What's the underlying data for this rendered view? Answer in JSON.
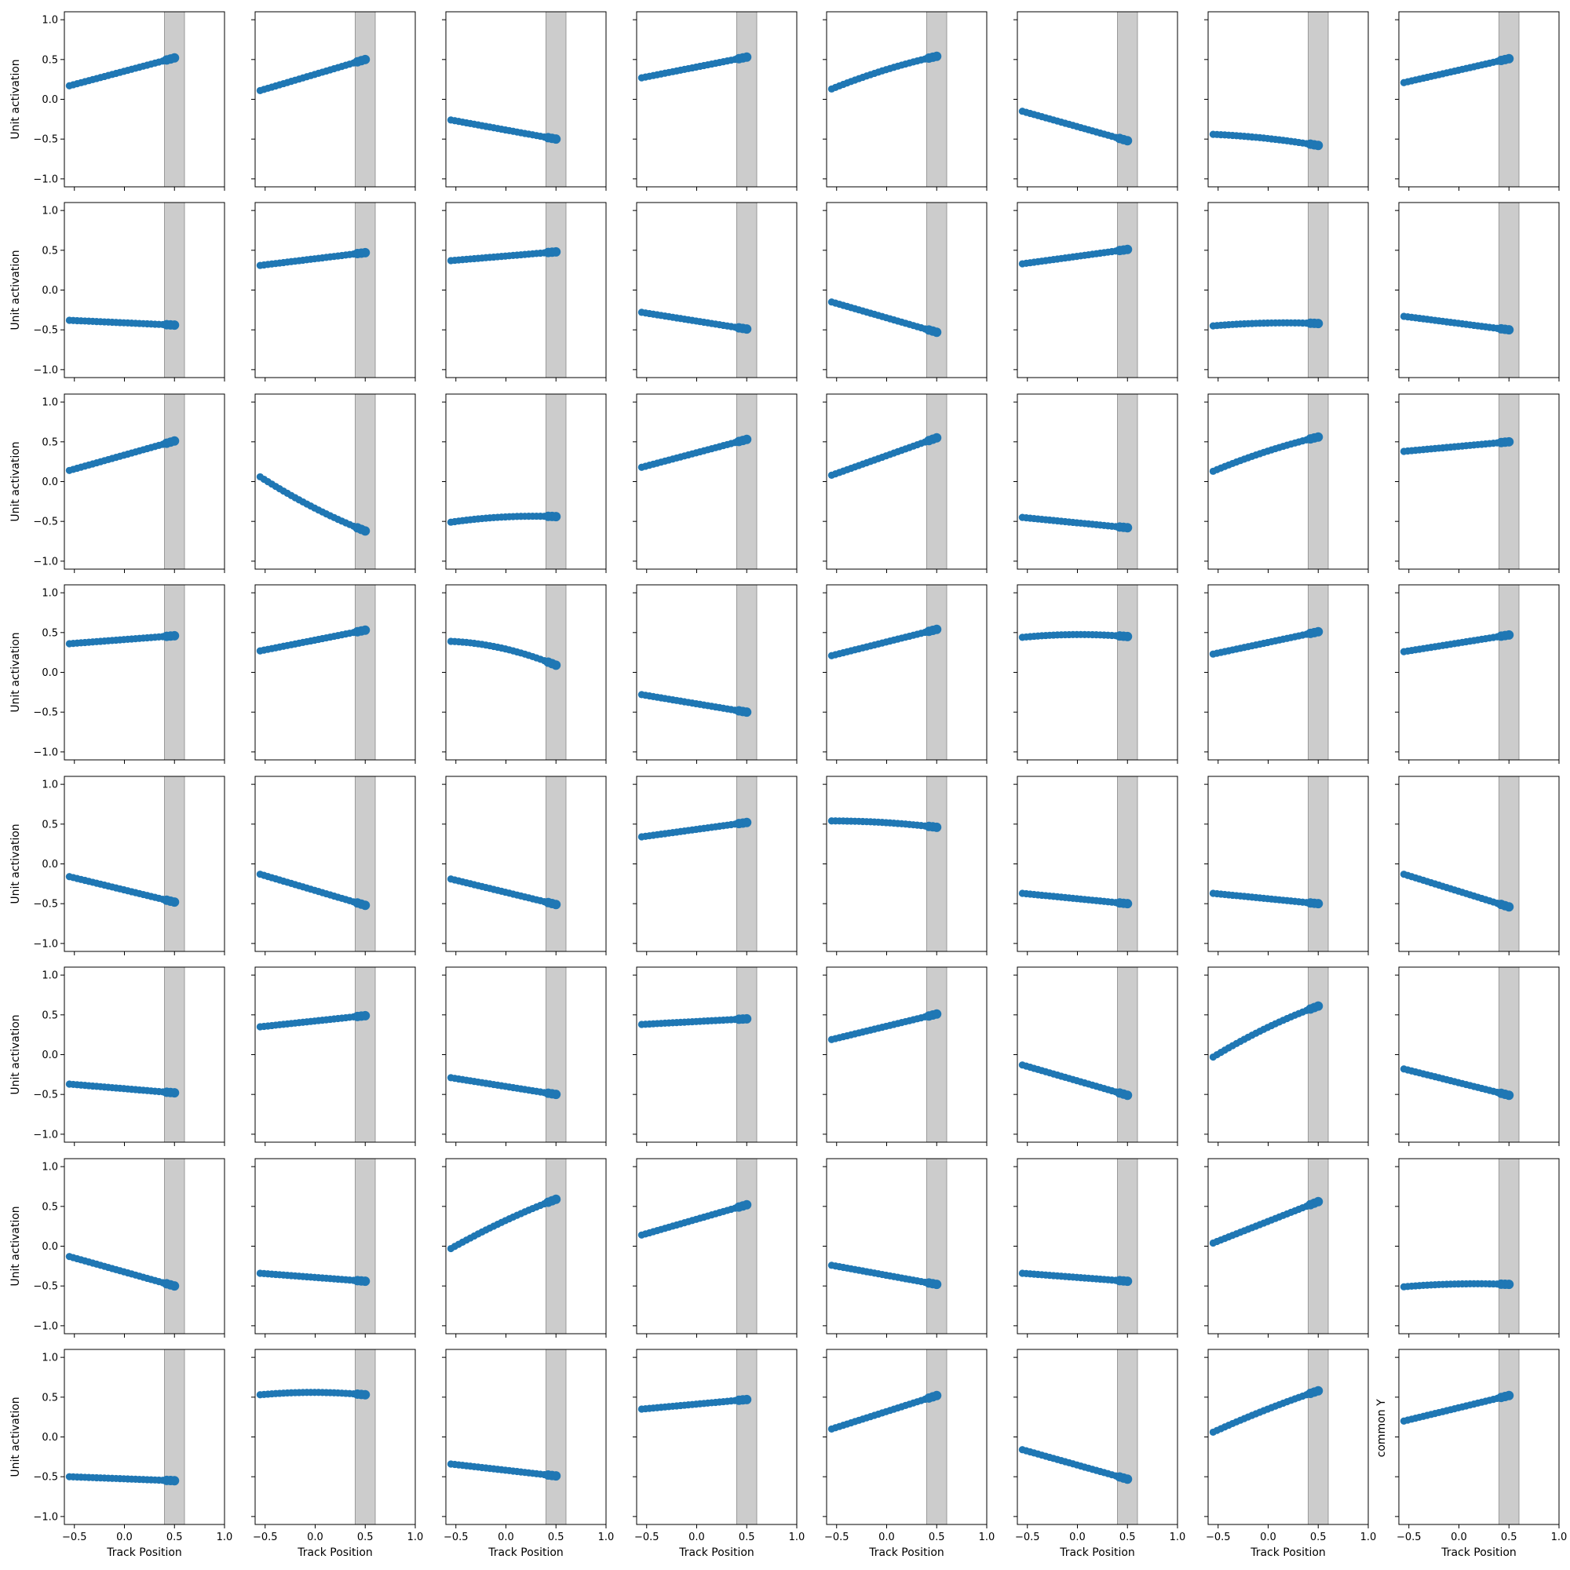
{
  "figure": {
    "rows": 8,
    "cols": 8,
    "background": "#ffffff",
    "point_color": "#1f77b4",
    "band_color": "#cccccc",
    "band_edge_color": "#999999",
    "axis_color": "#000000"
  },
  "chart_data": {
    "type": "scatter",
    "layout": "8x8 small multiples, shared axes",
    "xlabel": "Track Position",
    "ylabel": "Unit activation",
    "special_ylabel": "common Y",
    "xlim": [
      -0.6,
      1.0
    ],
    "ylim": [
      -1.1,
      1.1
    ],
    "xticks": [
      -0.5,
      0.0,
      0.5,
      1.0
    ],
    "xtick_labels": [
      "−0.5",
      "0.0",
      "0.5",
      "1.0"
    ],
    "yticks": [
      -1.0,
      -0.5,
      0.0,
      0.5,
      1.0
    ],
    "ytick_labels": [
      "−1.0",
      "−0.5",
      "0.0",
      "0.5",
      "1.0"
    ],
    "shaded_band_x": [
      0.4,
      0.6
    ],
    "x_range_points": [
      -0.55,
      0.5
    ],
    "points_per_panel": 28,
    "grid": false,
    "legend": "none",
    "panels": [
      {
        "row": 0,
        "col": 0,
        "y": [
          0.17,
          0.52
        ],
        "curve": 0
      },
      {
        "row": 0,
        "col": 1,
        "y": [
          0.11,
          0.5
        ],
        "curve": 0
      },
      {
        "row": 0,
        "col": 2,
        "y": [
          -0.26,
          -0.5
        ],
        "curve": 0
      },
      {
        "row": 0,
        "col": 3,
        "y": [
          0.27,
          0.53
        ],
        "curve": 0
      },
      {
        "row": 0,
        "col": 4,
        "y": [
          0.13,
          0.54
        ],
        "curve": 0.03
      },
      {
        "row": 0,
        "col": 5,
        "y": [
          -0.15,
          -0.52
        ],
        "curve": 0
      },
      {
        "row": 0,
        "col": 6,
        "y": [
          -0.44,
          -0.58
        ],
        "curve": 0.02
      },
      {
        "row": 0,
        "col": 7,
        "y": [
          0.21,
          0.51
        ],
        "curve": 0
      },
      {
        "row": 1,
        "col": 0,
        "y": [
          -0.38,
          -0.44
        ],
        "curve": 0
      },
      {
        "row": 1,
        "col": 1,
        "y": [
          0.31,
          0.47
        ],
        "curve": 0
      },
      {
        "row": 1,
        "col": 2,
        "y": [
          0.37,
          0.48
        ],
        "curve": 0
      },
      {
        "row": 1,
        "col": 3,
        "y": [
          -0.28,
          -0.49
        ],
        "curve": 0
      },
      {
        "row": 1,
        "col": 4,
        "y": [
          -0.15,
          -0.53
        ],
        "curve": 0
      },
      {
        "row": 1,
        "col": 5,
        "y": [
          0.33,
          0.51
        ],
        "curve": 0
      },
      {
        "row": 1,
        "col": 6,
        "y": [
          -0.45,
          -0.42
        ],
        "curve": 0.02
      },
      {
        "row": 1,
        "col": 7,
        "y": [
          -0.33,
          -0.5
        ],
        "curve": 0
      },
      {
        "row": 2,
        "col": 0,
        "y": [
          0.14,
          0.51
        ],
        "curve": 0
      },
      {
        "row": 2,
        "col": 1,
        "y": [
          0.06,
          -0.62
        ],
        "curve": -0.04
      },
      {
        "row": 2,
        "col": 2,
        "y": [
          -0.51,
          -0.44
        ],
        "curve": 0.03
      },
      {
        "row": 2,
        "col": 3,
        "y": [
          0.18,
          0.53
        ],
        "curve": 0
      },
      {
        "row": 2,
        "col": 4,
        "y": [
          0.08,
          0.55
        ],
        "curve": 0
      },
      {
        "row": 2,
        "col": 5,
        "y": [
          -0.45,
          -0.58
        ],
        "curve": 0
      },
      {
        "row": 2,
        "col": 6,
        "y": [
          0.13,
          0.56
        ],
        "curve": 0.03
      },
      {
        "row": 2,
        "col": 7,
        "y": [
          0.38,
          0.5
        ],
        "curve": 0
      },
      {
        "row": 3,
        "col": 0,
        "y": [
          0.36,
          0.46
        ],
        "curve": 0
      },
      {
        "row": 3,
        "col": 1,
        "y": [
          0.27,
          0.53
        ],
        "curve": 0
      },
      {
        "row": 3,
        "col": 2,
        "y": [
          0.39,
          0.09
        ],
        "curve": 0.06
      },
      {
        "row": 3,
        "col": 3,
        "y": [
          -0.28,
          -0.5
        ],
        "curve": 0
      },
      {
        "row": 3,
        "col": 4,
        "y": [
          0.21,
          0.54
        ],
        "curve": 0
      },
      {
        "row": 3,
        "col": 5,
        "y": [
          0.44,
          0.45
        ],
        "curve": 0.03
      },
      {
        "row": 3,
        "col": 6,
        "y": [
          0.23,
          0.51
        ],
        "curve": 0
      },
      {
        "row": 3,
        "col": 7,
        "y": [
          0.26,
          0.47
        ],
        "curve": 0
      },
      {
        "row": 4,
        "col": 0,
        "y": [
          -0.16,
          -0.48
        ],
        "curve": 0
      },
      {
        "row": 4,
        "col": 1,
        "y": [
          -0.13,
          -0.52
        ],
        "curve": 0
      },
      {
        "row": 4,
        "col": 2,
        "y": [
          -0.19,
          -0.51
        ],
        "curve": 0
      },
      {
        "row": 4,
        "col": 3,
        "y": [
          0.34,
          0.52
        ],
        "curve": 0
      },
      {
        "row": 4,
        "col": 4,
        "y": [
          0.54,
          0.46
        ],
        "curve": 0.02
      },
      {
        "row": 4,
        "col": 5,
        "y": [
          -0.37,
          -0.5
        ],
        "curve": 0
      },
      {
        "row": 4,
        "col": 6,
        "y": [
          -0.37,
          -0.5
        ],
        "curve": 0
      },
      {
        "row": 4,
        "col": 7,
        "y": [
          -0.13,
          -0.54
        ],
        "curve": 0
      },
      {
        "row": 5,
        "col": 0,
        "y": [
          -0.37,
          -0.48
        ],
        "curve": 0
      },
      {
        "row": 5,
        "col": 1,
        "y": [
          0.35,
          0.49
        ],
        "curve": 0
      },
      {
        "row": 5,
        "col": 2,
        "y": [
          -0.29,
          -0.5
        ],
        "curve": 0
      },
      {
        "row": 5,
        "col": 3,
        "y": [
          0.38,
          0.45
        ],
        "curve": 0
      },
      {
        "row": 5,
        "col": 4,
        "y": [
          0.19,
          0.51
        ],
        "curve": 0
      },
      {
        "row": 5,
        "col": 5,
        "y": [
          -0.13,
          -0.51
        ],
        "curve": 0
      },
      {
        "row": 5,
        "col": 6,
        "y": [
          -0.03,
          0.61
        ],
        "curve": 0.04
      },
      {
        "row": 5,
        "col": 7,
        "y": [
          -0.18,
          -0.51
        ],
        "curve": 0
      },
      {
        "row": 6,
        "col": 0,
        "y": [
          -0.13,
          -0.5
        ],
        "curve": 0
      },
      {
        "row": 6,
        "col": 1,
        "y": [
          -0.34,
          -0.44
        ],
        "curve": 0
      },
      {
        "row": 6,
        "col": 2,
        "y": [
          -0.03,
          0.59
        ],
        "curve": 0.03
      },
      {
        "row": 6,
        "col": 3,
        "y": [
          0.14,
          0.52
        ],
        "curve": 0
      },
      {
        "row": 6,
        "col": 4,
        "y": [
          -0.24,
          -0.48
        ],
        "curve": 0
      },
      {
        "row": 6,
        "col": 5,
        "y": [
          -0.34,
          -0.44
        ],
        "curve": 0
      },
      {
        "row": 6,
        "col": 6,
        "y": [
          0.04,
          0.56
        ],
        "curve": 0
      },
      {
        "row": 6,
        "col": 7,
        "y": [
          -0.51,
          -0.48
        ],
        "curve": 0.02
      },
      {
        "row": 7,
        "col": 0,
        "y": [
          -0.5,
          -0.55
        ],
        "curve": 0
      },
      {
        "row": 7,
        "col": 1,
        "y": [
          0.53,
          0.53
        ],
        "curve": 0.03
      },
      {
        "row": 7,
        "col": 2,
        "y": [
          -0.34,
          -0.49
        ],
        "curve": 0
      },
      {
        "row": 7,
        "col": 3,
        "y": [
          0.35,
          0.47
        ],
        "curve": 0
      },
      {
        "row": 7,
        "col": 4,
        "y": [
          0.1,
          0.52
        ],
        "curve": 0
      },
      {
        "row": 7,
        "col": 5,
        "y": [
          -0.16,
          -0.53
        ],
        "curve": 0
      },
      {
        "row": 7,
        "col": 6,
        "y": [
          0.06,
          0.58
        ],
        "curve": 0.02
      },
      {
        "row": 7,
        "col": 7,
        "y": [
          0.2,
          0.52
        ],
        "curve": 0
      }
    ]
  }
}
